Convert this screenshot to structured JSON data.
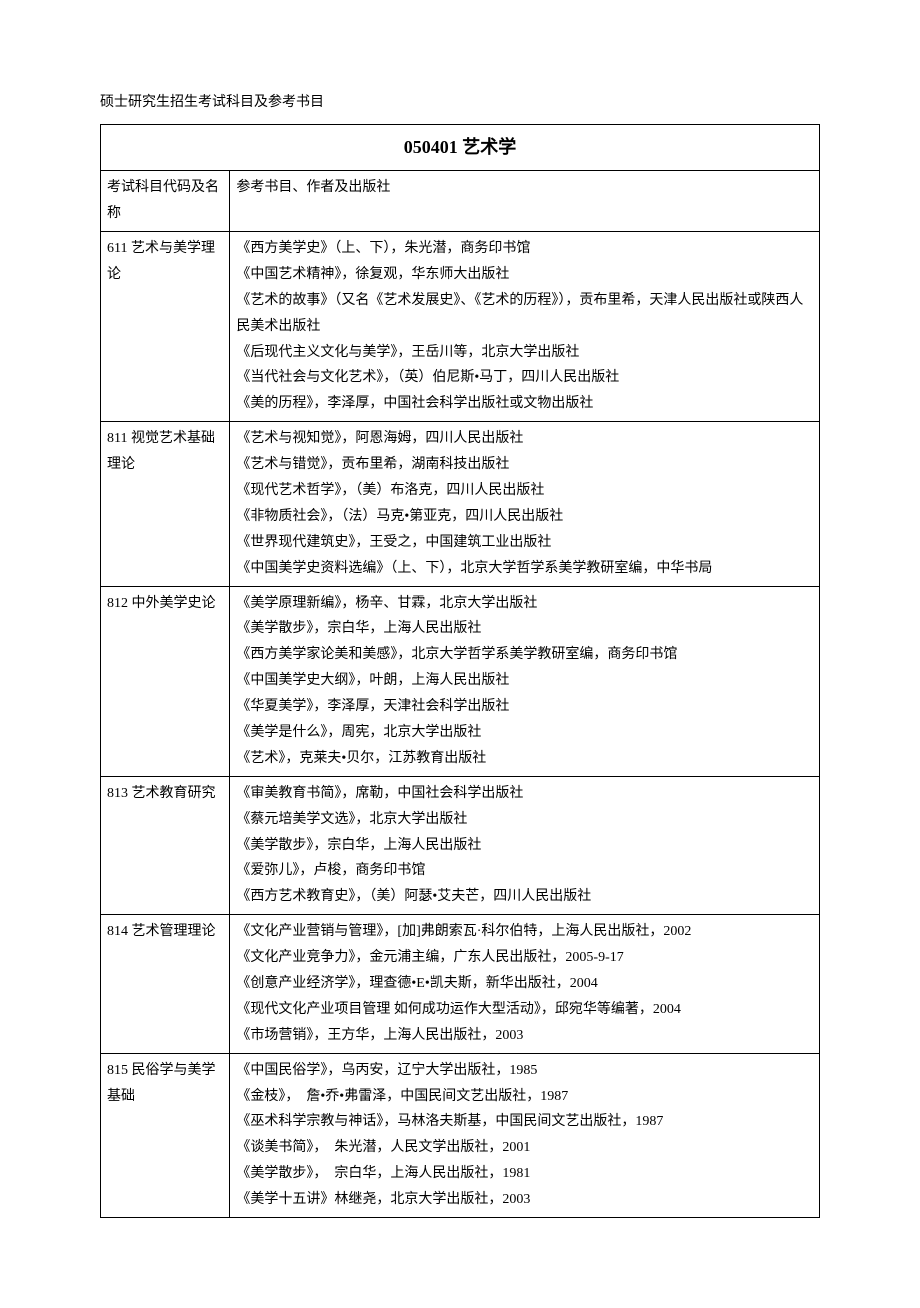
{
  "doc_title": "硕士研究生招生考试科目及参考书目",
  "major_title": "050401 艺术学",
  "header_col1": "考试科目代码及名称",
  "header_col2": "参考书目、作者及出版社",
  "rows": [
    {
      "subject": "611 艺术与美学理论",
      "refs": [
        "《西方美学史》（上、下），朱光潜，商务印书馆",
        "《中国艺术精神》，徐复观，华东师大出版社",
        "《艺术的故事》（又名《艺术发展史》、《艺术的历程》），贡布里希，天津人民出版社或陕西人民美术出版社",
        "《后现代主义文化与美学》，王岳川等，北京大学出版社",
        "《当代社会与文化艺术》，（英）伯尼斯•马丁，四川人民出版社",
        "《美的历程》，李泽厚，中国社会科学出版社或文物出版社"
      ]
    },
    {
      "subject": "811 视觉艺术基础理论",
      "refs": [
        "《艺术与视知觉》，阿恩海姆，四川人民出版社",
        "《艺术与错觉》，贡布里希，湖南科技出版社",
        "《现代艺术哲学》，（美）布洛克，四川人民出版社",
        "《非物质社会》，（法）马克•第亚克，四川人民出版社",
        "《世界现代建筑史》，王受之，中国建筑工业出版社",
        "《中国美学史资料选编》（上、下），北京大学哲学系美学教研室编，中华书局"
      ]
    },
    {
      "subject": "812 中外美学史论",
      "refs": [
        "《美学原理新编》，杨辛、甘霖，北京大学出版社",
        "《美学散步》，宗白华，上海人民出版社",
        "《西方美学家论美和美感》，北京大学哲学系美学教研室编，商务印书馆",
        "《中国美学史大纲》，叶朗，上海人民出版社",
        "《华夏美学》，李泽厚，天津社会科学出版社",
        "《美学是什么》，周宪，北京大学出版社",
        "《艺术》，克莱夫•贝尔，江苏教育出版社"
      ]
    },
    {
      "subject": "813 艺术教育研究",
      "refs": [
        "《审美教育书简》，席勒，中国社会科学出版社",
        "《蔡元培美学文选》，北京大学出版社",
        "《美学散步》，宗白华，上海人民出版社",
        "《爱弥儿》，卢梭，商务印书馆",
        "《西方艺术教育史》，（美）阿瑟•艾夫芒，四川人民出版社"
      ]
    },
    {
      "subject": "814 艺术管理理论",
      "refs": [
        "《文化产业营销与管理》，[加]弗朗索瓦·科尔伯特，上海人民出版社，2002",
        "《文化产业竞争力》，金元浦主编，广东人民出版社，2005-9-17",
        "《创意产业经济学》，理查德•E•凯夫斯，新华出版社，2004",
        "《现代文化产业项目管理 如何成功运作大型活动》，邱宛华等编著，2004",
        "《市场营销》，王方华，上海人民出版社，2003"
      ]
    },
    {
      "subject": "815 民俗学与美学基础",
      "refs": [
        "《中国民俗学》，乌丙安，辽宁大学出版社，1985",
        "《金枝》，　詹•乔•弗雷泽，中国民间文艺出版社，1987",
        "《巫术科学宗教与神话》，马林洛夫斯基，中国民间文艺出版社，1987",
        "《谈美书简》，　朱光潜，人民文学出版社，2001",
        "《美学散步》，　宗白华，上海人民出版社，1981",
        "《美学十五讲》林继尧，北京大学出版社，2003"
      ]
    }
  ]
}
